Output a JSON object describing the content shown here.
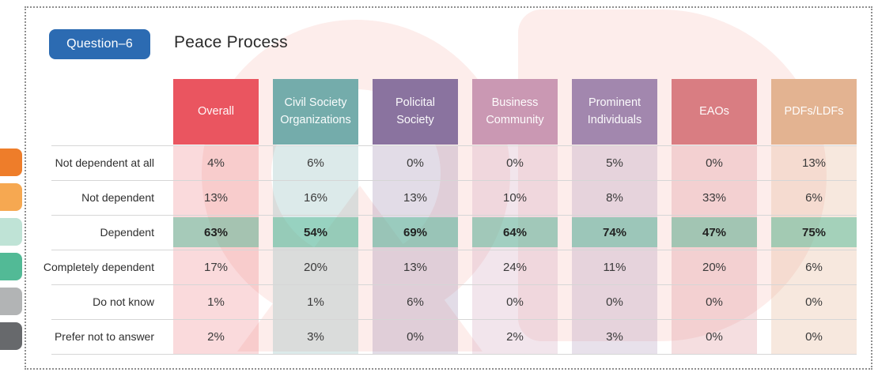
{
  "header": {
    "question_badge": "Question–6",
    "title": "Peace Process"
  },
  "legend_colors": [
    "#ee7d2a",
    "#f6a851",
    "#bfe3d6",
    "#52ba96",
    "#b2b4b5",
    "#67696c"
  ],
  "accent": {
    "badge_blue": "#2c6bb2",
    "highlight_teal": "rgba(82,186,150,0.5)",
    "divider_gray": "#d6d6d6"
  },
  "chart_data": {
    "type": "table",
    "title": "Question–6 Peace Process",
    "columns": [
      {
        "label": "Overall",
        "color": "#ea5560",
        "tint": "rgba(234,85,96,0.22)"
      },
      {
        "label": "Civil Society Organizations",
        "color": "#74acab",
        "tint": "rgba(116,172,171,0.25)"
      },
      {
        "label": "Policital Society",
        "color": "#8a739f",
        "tint": "rgba(138,115,159,0.25)"
      },
      {
        "label": "Business Community",
        "color": "#ca98b3",
        "tint": "rgba(202,152,179,0.25)"
      },
      {
        "label": "Prominent Individuals",
        "color": "#a287ae",
        "tint": "rgba(162,135,174,0.25)"
      },
      {
        "label": "EAOs",
        "color": "#d97d82",
        "tint": "rgba(217,125,130,0.25)"
      },
      {
        "label": "PDFs/LDFs",
        "color": "#e3b391",
        "tint": "rgba(227,179,145,0.3)"
      }
    ],
    "rows": [
      {
        "label": "Not dependent at all",
        "highlight": false,
        "values": [
          "4%",
          "6%",
          "0%",
          "0%",
          "5%",
          "0%",
          "13%"
        ]
      },
      {
        "label": "Not dependent",
        "highlight": false,
        "values": [
          "13%",
          "16%",
          "13%",
          "10%",
          "8%",
          "33%",
          "6%"
        ]
      },
      {
        "label": "Dependent",
        "highlight": true,
        "values": [
          "63%",
          "54%",
          "69%",
          "64%",
          "74%",
          "47%",
          "75%"
        ]
      },
      {
        "label": "Completely dependent",
        "highlight": false,
        "values": [
          "17%",
          "20%",
          "13%",
          "24%",
          "11%",
          "20%",
          "6%"
        ]
      },
      {
        "label": "Do not know",
        "highlight": false,
        "values": [
          "1%",
          "1%",
          "6%",
          "0%",
          "0%",
          "0%",
          "0%"
        ]
      },
      {
        "label": "Prefer not to answer",
        "highlight": false,
        "values": [
          "2%",
          "3%",
          "0%",
          "2%",
          "3%",
          "0%",
          "0%"
        ]
      }
    ]
  }
}
